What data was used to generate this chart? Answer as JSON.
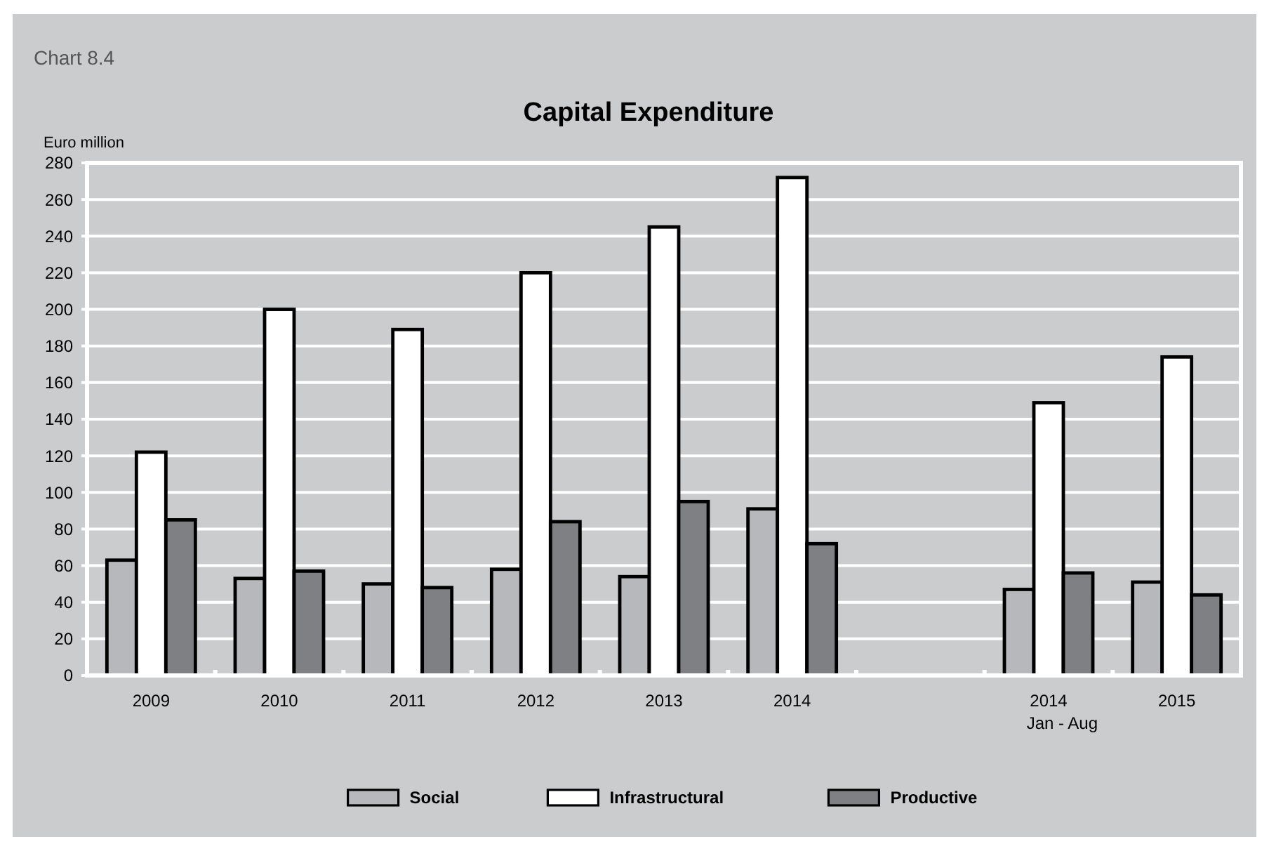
{
  "chart_data": {
    "type": "bar",
    "title": "Capital Expenditure",
    "ylabel": "Euro million",
    "annotations": [
      "Chart 8.4",
      "Jan - Aug"
    ],
    "categories": [
      "2009",
      "2010",
      "2011",
      "2012",
      "2013",
      "2014",
      null,
      "2014",
      "2015"
    ],
    "series": [
      {
        "name": "Social",
        "color": "#b7b8bb",
        "values": [
          63,
          53,
          50,
          58,
          54,
          91,
          null,
          47,
          51
        ]
      },
      {
        "name": "Infrastructural",
        "color": "#ffffff",
        "values": [
          122,
          200,
          189,
          220,
          245,
          272,
          null,
          149,
          174
        ]
      },
      {
        "name": "Productive",
        "color": "#7f8084",
        "values": [
          85,
          57,
          48,
          84,
          95,
          72,
          null,
          56,
          44
        ]
      }
    ],
    "ylim": [
      0,
      280
    ],
    "yticks": [
      0,
      20,
      40,
      60,
      80,
      100,
      120,
      140,
      160,
      180,
      200,
      220,
      240,
      260,
      280
    ],
    "grid": "y",
    "legend": "bottom"
  }
}
